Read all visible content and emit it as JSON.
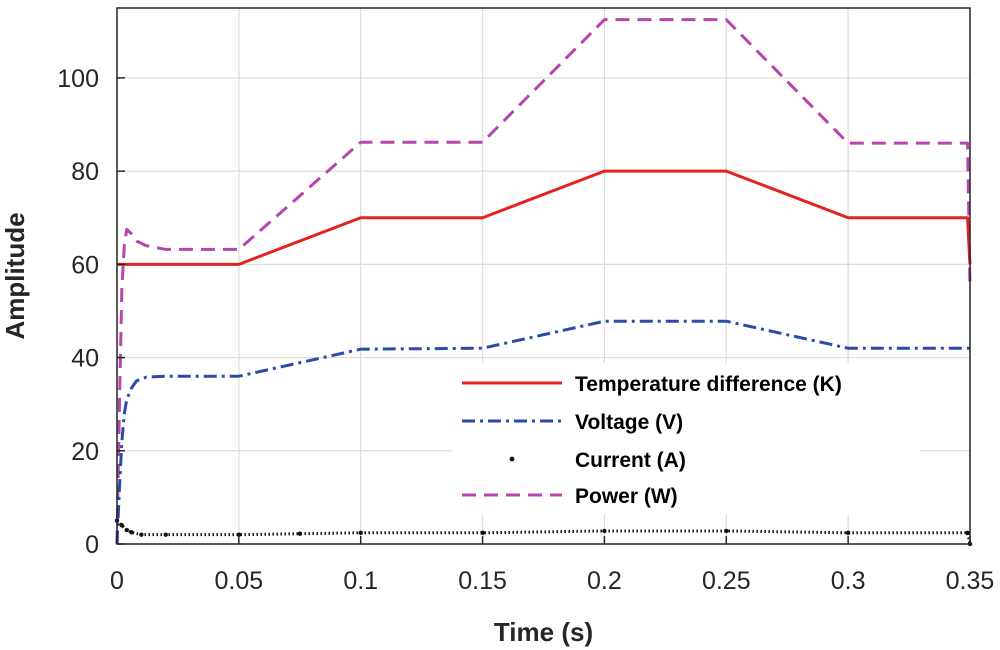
{
  "chart_data": {
    "type": "line",
    "title": "",
    "xlabel": "Time (s)",
    "ylabel": "Amplitude",
    "xlim": [
      0,
      0.35
    ],
    "ylim": [
      0,
      115
    ],
    "grid": true,
    "legend_position": "lower-right",
    "xticks": [
      0,
      0.05,
      0.1,
      0.15,
      0.2,
      0.25,
      0.3,
      0.35
    ],
    "xtick_labels": [
      "0",
      "0.05",
      "0.1",
      "0.15",
      "0.2",
      "0.25",
      "0.3",
      "0.35"
    ],
    "yticks": [
      0,
      20,
      40,
      60,
      80,
      100
    ],
    "ytick_labels": [
      "0",
      "20",
      "40",
      "60",
      "80",
      "100"
    ],
    "series": [
      {
        "name": "Temperature difference (K)",
        "color": "#e32222",
        "style": "solid",
        "x": [
          0,
          0.05,
          0.1,
          0.15,
          0.2,
          0.25,
          0.3,
          0.349,
          0.35
        ],
        "y": [
          60,
          60,
          70,
          70,
          80,
          80,
          70,
          70,
          60
        ]
      },
      {
        "name": "Voltage (V)",
        "color": "#2c4ba8",
        "style": "dashdot",
        "x": [
          0,
          0.001,
          0.002,
          0.003,
          0.004,
          0.006,
          0.008,
          0.012,
          0.02,
          0.05,
          0.1,
          0.15,
          0.2,
          0.25,
          0.3,
          0.35
        ],
        "y": [
          0,
          12,
          22,
          28,
          31,
          33.5,
          35,
          35.8,
          36,
          36,
          41.8,
          42,
          47.8,
          47.8,
          42,
          42
        ]
      },
      {
        "name": "Current (A)",
        "color": "#111111",
        "style": "dotted-marker",
        "x": [
          0,
          0.002,
          0.004,
          0.006,
          0.01,
          0.02,
          0.05,
          0.075,
          0.1,
          0.15,
          0.2,
          0.25,
          0.3,
          0.349,
          0.35
        ],
        "y": [
          5,
          4,
          3,
          2.5,
          2,
          2,
          2,
          2.2,
          2.4,
          2.4,
          2.8,
          2.8,
          2.4,
          2.4,
          0
        ]
      },
      {
        "name": "Power (W)",
        "color": "#b845ae",
        "style": "dashed",
        "x": [
          0,
          0.001,
          0.002,
          0.003,
          0.004,
          0.006,
          0.008,
          0.012,
          0.02,
          0.05,
          0.1,
          0.15,
          0.2,
          0.25,
          0.3,
          0.349,
          0.35
        ],
        "y": [
          0,
          30,
          55,
          64,
          67.5,
          66.5,
          65,
          64,
          63.2,
          63.2,
          86.2,
          86.2,
          112.5,
          112.5,
          86,
          86,
          55
        ]
      }
    ]
  }
}
